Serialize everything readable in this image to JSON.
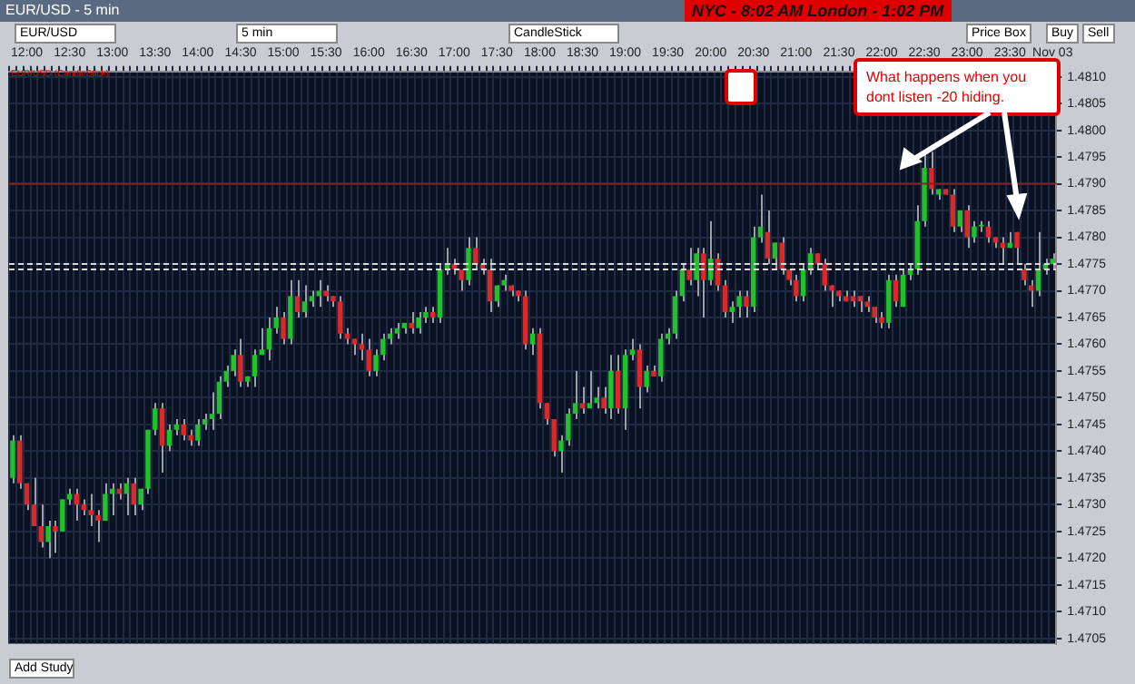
{
  "chart_data": {
    "type": "candlestick",
    "title": "EUR/USD - 5 min",
    "subtitle": "NYC - 8:02 AM   London - 1:02 PM",
    "annotations": [
      "What happens when you dont listen -20 hiding.",
      "EUR/USD",
      "5 min",
      "CandleStick",
      "Price Box",
      "Buy",
      "Sell",
      "EUR/USD (CandleStick)",
      "Add Study"
    ],
    "categories": [
      null,
      null,
      "12:00",
      null,
      null,
      null,
      null,
      null,
      "12:30",
      null,
      null,
      null,
      null,
      null,
      "13:00",
      null,
      null,
      null,
      null,
      null,
      "13:30",
      null,
      null,
      null,
      null,
      null,
      "14:00",
      null,
      null,
      null,
      null,
      null,
      "14:30",
      null,
      null,
      null,
      null,
      null,
      "15:00",
      null,
      null,
      null,
      null,
      null,
      "15:30",
      null,
      null,
      null,
      null,
      null,
      "16:00",
      null,
      null,
      null,
      null,
      null,
      "16:30",
      null,
      null,
      null,
      null,
      null,
      "17:00",
      null,
      null,
      null,
      null,
      null,
      "17:30",
      null,
      null,
      null,
      null,
      null,
      "18:00",
      null,
      null,
      null,
      null,
      null,
      "18:30",
      null,
      null,
      null,
      null,
      null,
      "19:00",
      null,
      null,
      null,
      null,
      null,
      "19:30",
      null,
      null,
      null,
      null,
      null,
      "20:00",
      null,
      null,
      null,
      null,
      null,
      "20:30",
      null,
      null,
      null,
      null,
      null,
      "21:00",
      null,
      null,
      null,
      null,
      null,
      "21:30",
      null,
      null,
      null,
      null,
      null,
      "22:00",
      null,
      null,
      null,
      null,
      null,
      "22:30",
      null,
      null,
      null,
      null,
      null,
      "23:00",
      null,
      null,
      null,
      null,
      null,
      "23:30",
      null,
      null,
      null,
      null,
      null,
      "Nov 03"
    ],
    "ohlc": [
      [
        1.4735,
        1.4743,
        1.4734,
        1.4742
      ],
      [
        1.4742,
        1.4743,
        1.4733,
        1.4734
      ],
      [
        1.4734,
        1.4734,
        1.4729,
        1.473
      ],
      [
        1.473,
        1.4735,
        1.4726,
        1.4726
      ],
      [
        1.4726,
        1.473,
        1.4722,
        1.4723
      ],
      [
        1.4723,
        1.4727,
        1.472,
        1.4726
      ],
      [
        1.4726,
        1.4727,
        1.4721,
        1.4725
      ],
      [
        1.4725,
        1.4731,
        1.4725,
        1.4731
      ],
      [
        1.4731,
        1.4733,
        1.473,
        1.4732
      ],
      [
        1.4732,
        1.4733,
        1.4727,
        1.473
      ],
      [
        1.473,
        1.4731,
        1.4728,
        1.4729
      ],
      [
        1.4729,
        1.4732,
        1.4726,
        1.4728
      ],
      [
        1.4728,
        1.4729,
        1.4723,
        1.4727
      ],
      [
        1.4727,
        1.4734,
        1.4727,
        1.4732
      ],
      [
        1.4732,
        1.4734,
        1.4728,
        1.4733
      ],
      [
        1.4733,
        1.4734,
        1.4731,
        1.4732
      ],
      [
        1.4732,
        1.4735,
        1.4728,
        1.4734
      ],
      [
        1.4734,
        1.4735,
        1.4728,
        1.473
      ],
      [
        1.473,
        1.4733,
        1.4729,
        1.4733
      ],
      [
        1.4733,
        1.4744,
        1.4732,
        1.4744
      ],
      [
        1.4744,
        1.4749,
        1.4743,
        1.4748
      ],
      [
        1.4748,
        1.4749,
        1.4736,
        1.4741
      ],
      [
        1.4741,
        1.4745,
        1.474,
        1.4744
      ],
      [
        1.4744,
        1.4746,
        1.4743,
        1.4745
      ],
      [
        1.4745,
        1.4746,
        1.4742,
        1.4743
      ],
      [
        1.4743,
        1.4744,
        1.4741,
        1.4742
      ],
      [
        1.4742,
        1.4746,
        1.4741,
        1.4745
      ],
      [
        1.4745,
        1.4747,
        1.4744,
        1.4746
      ],
      [
        1.4746,
        1.4751,
        1.4744,
        1.4747
      ],
      [
        1.4747,
        1.4754,
        1.4746,
        1.4753
      ],
      [
        1.4753,
        1.4756,
        1.4752,
        1.4755
      ],
      [
        1.4755,
        1.4759,
        1.4754,
        1.4758
      ],
      [
        1.4758,
        1.4761,
        1.4752,
        1.4753
      ],
      [
        1.4753,
        1.4754,
        1.4752,
        1.4754
      ],
      [
        1.4754,
        1.4759,
        1.4752,
        1.4758
      ],
      [
        1.4758,
        1.4763,
        1.4758,
        1.4759
      ],
      [
        1.4759,
        1.4765,
        1.4757,
        1.4763
      ],
      [
        1.4763,
        1.4767,
        1.4762,
        1.4765
      ],
      [
        1.4765,
        1.4766,
        1.476,
        1.4761
      ],
      [
        1.4761,
        1.4772,
        1.476,
        1.4769
      ],
      [
        1.4769,
        1.4772,
        1.4765,
        1.4766
      ],
      [
        1.4766,
        1.4771,
        1.4765,
        1.4768
      ],
      [
        1.4768,
        1.477,
        1.4767,
        1.4769
      ],
      [
        1.4769,
        1.4772,
        1.4767,
        1.477
      ],
      [
        1.477,
        1.4771,
        1.4768,
        1.4769
      ],
      [
        1.4769,
        1.4769,
        1.4767,
        1.4768
      ],
      [
        1.4768,
        1.4769,
        1.4761,
        1.4762
      ],
      [
        1.4762,
        1.4763,
        1.476,
        1.4761
      ],
      [
        1.4761,
        1.4761,
        1.4758,
        1.476
      ],
      [
        1.476,
        1.4762,
        1.4757,
        1.4759
      ],
      [
        1.4759,
        1.4761,
        1.4754,
        1.4755
      ],
      [
        1.4755,
        1.4759,
        1.4754,
        1.4758
      ],
      [
        1.4758,
        1.4762,
        1.4757,
        1.4761
      ],
      [
        1.4761,
        1.4763,
        1.476,
        1.4762
      ],
      [
        1.4762,
        1.4764,
        1.4761,
        1.4763
      ],
      [
        1.4763,
        1.4764,
        1.4762,
        1.4764
      ],
      [
        1.4764,
        1.4766,
        1.4762,
        1.4763
      ],
      [
        1.4763,
        1.4766,
        1.4762,
        1.4765
      ],
      [
        1.4765,
        1.4767,
        1.4764,
        1.4766
      ],
      [
        1.4766,
        1.4767,
        1.4764,
        1.4765
      ],
      [
        1.4765,
        1.4775,
        1.4764,
        1.4774
      ],
      [
        1.4774,
        1.4778,
        1.4773,
        1.4775
      ],
      [
        1.4775,
        1.4776,
        1.4773,
        1.4774
      ],
      [
        1.4774,
        1.4774,
        1.477,
        1.4772
      ],
      [
        1.4772,
        1.478,
        1.4771,
        1.4778
      ],
      [
        1.4778,
        1.478,
        1.4774,
        1.4775
      ],
      [
        1.4775,
        1.4776,
        1.4773,
        1.4774
      ],
      [
        1.4774,
        1.4776,
        1.4766,
        1.4768
      ],
      [
        1.4768,
        1.4771,
        1.4767,
        1.4771
      ],
      [
        1.4771,
        1.4773,
        1.477,
        1.4772
      ],
      [
        1.4771,
        1.4771,
        1.4769,
        1.477
      ],
      [
        1.477,
        1.477,
        1.4768,
        1.4769
      ],
      [
        1.4769,
        1.477,
        1.4759,
        1.476
      ],
      [
        1.476,
        1.4763,
        1.4758,
        1.4762
      ],
      [
        1.4762,
        1.4763,
        1.4748,
        1.4749
      ],
      [
        1.4749,
        1.4749,
        1.4745,
        1.4746
      ],
      [
        1.4746,
        1.4746,
        1.4739,
        1.474
      ],
      [
        1.474,
        1.4743,
        1.4736,
        1.4742
      ],
      [
        1.4742,
        1.4748,
        1.4741,
        1.4747
      ],
      [
        1.4747,
        1.4755,
        1.4746,
        1.4749
      ],
      [
        1.4749,
        1.4752,
        1.4747,
        1.4748
      ],
      [
        1.4748,
        1.4755,
        1.4748,
        1.4749
      ],
      [
        1.4749,
        1.4752,
        1.4748,
        1.475
      ],
      [
        1.475,
        1.4752,
        1.4747,
        1.4748
      ],
      [
        1.4748,
        1.4758,
        1.4746,
        1.4755
      ],
      [
        1.4755,
        1.4758,
        1.4747,
        1.4748
      ],
      [
        1.4748,
        1.4759,
        1.4744,
        1.4758
      ],
      [
        1.4758,
        1.4761,
        1.4757,
        1.4759
      ],
      [
        1.4759,
        1.476,
        1.4748,
        1.4752
      ],
      [
        1.4752,
        1.4756,
        1.4751,
        1.4755
      ],
      [
        1.4755,
        1.4756,
        1.4754,
        1.4754
      ],
      [
        1.4754,
        1.4762,
        1.4753,
        1.4761
      ],
      [
        1.4761,
        1.4763,
        1.476,
        1.4762
      ],
      [
        1.4762,
        1.477,
        1.4761,
        1.4769
      ],
      [
        1.4769,
        1.4775,
        1.4768,
        1.4774
      ],
      [
        1.4774,
        1.4778,
        1.4771,
        1.4772
      ],
      [
        1.4772,
        1.4778,
        1.4769,
        1.4777
      ],
      [
        1.4777,
        1.4778,
        1.4765,
        1.4772
      ],
      [
        1.4772,
        1.4783,
        1.4771,
        1.4776
      ],
      [
        1.4776,
        1.4777,
        1.477,
        1.4771
      ],
      [
        1.4771,
        1.4772,
        1.4765,
        1.4766
      ],
      [
        1.4766,
        1.4768,
        1.4764,
        1.4767
      ],
      [
        1.4767,
        1.477,
        1.4765,
        1.4769
      ],
      [
        1.4769,
        1.477,
        1.4765,
        1.4767
      ],
      [
        1.4767,
        1.4782,
        1.4766,
        1.478
      ],
      [
        1.478,
        1.4788,
        1.4779,
        1.4782
      ],
      [
        1.4781,
        1.4785,
        1.4775,
        1.4776
      ],
      [
        1.4776,
        1.4779,
        1.4774,
        1.4779
      ],
      [
        1.4779,
        1.478,
        1.4773,
        1.4774
      ],
      [
        1.4774,
        1.4774,
        1.4771,
        1.4772
      ],
      [
        1.4772,
        1.4773,
        1.4768,
        1.4769
      ],
      [
        1.4769,
        1.4775,
        1.4768,
        1.4774
      ],
      [
        1.4774,
        1.4778,
        1.4773,
        1.4777
      ],
      [
        1.4777,
        1.4777,
        1.4774,
        1.4775
      ],
      [
        1.4775,
        1.4776,
        1.477,
        1.4771
      ],
      [
        1.4771,
        1.4771,
        1.4767,
        1.477
      ],
      [
        1.477,
        1.477,
        1.4768,
        1.4769
      ],
      [
        1.4769,
        1.477,
        1.4768,
        1.4768
      ],
      [
        1.4769,
        1.477,
        1.4767,
        1.4768
      ],
      [
        1.4769,
        1.4769,
        1.4766,
        1.4768
      ],
      [
        1.4768,
        1.4769,
        1.4766,
        1.4767
      ],
      [
        1.4767,
        1.4767,
        1.4764,
        1.4765
      ],
      [
        1.4765,
        1.4766,
        1.4763,
        1.4764
      ],
      [
        1.4764,
        1.4773,
        1.4763,
        1.4772
      ],
      [
        1.4772,
        1.4773,
        1.4767,
        1.4768
      ],
      [
        1.4767,
        1.4774,
        1.4767,
        1.4773
      ],
      [
        1.4773,
        1.4775,
        1.4772,
        1.4774
      ],
      [
        1.4774,
        1.4786,
        1.4773,
        1.4783
      ],
      [
        1.4783,
        1.4796,
        1.4782,
        1.4793
      ],
      [
        1.4793,
        1.4796,
        1.4788,
        1.4789
      ],
      [
        1.4788,
        1.4789,
        1.4787,
        1.4789
      ],
      [
        1.4789,
        1.4789,
        1.4788,
        1.4788
      ],
      [
        1.4788,
        1.4789,
        1.4781,
        1.4782
      ],
      [
        1.4782,
        1.4785,
        1.4781,
        1.4785
      ],
      [
        1.4785,
        1.4786,
        1.4778,
        1.478
      ],
      [
        1.478,
        1.4783,
        1.4779,
        1.4782
      ],
      [
        1.4782,
        1.4783,
        1.4781,
        1.4782
      ],
      [
        1.4782,
        1.4783,
        1.4779,
        1.478
      ],
      [
        1.478,
        1.478,
        1.4778,
        1.4779
      ],
      [
        1.4779,
        1.478,
        1.4775,
        1.4778
      ],
      [
        1.4778,
        1.4781,
        1.4778,
        1.4779
      ],
      [
        1.4781,
        1.4781,
        1.4775,
        1.4778
      ],
      [
        1.4774,
        1.4775,
        1.4771,
        1.4772
      ],
      [
        1.4771,
        1.4772,
        1.4767,
        1.477
      ],
      [
        1.477,
        1.4781,
        1.4769,
        1.4774
      ],
      [
        1.4774,
        1.4776,
        1.4773,
        1.4775
      ],
      [
        1.4775,
        1.4777,
        1.4774,
        1.4776
      ]
    ],
    "ylim": [
      1.4704,
      1.4811
    ],
    "yticks": [
      1.4705,
      {
        "value": 1.471,
        "label": "1.4710"
      },
      1.4715,
      {
        "value": 1.472,
        "label": "1.4720"
      },
      1.4725,
      {
        "value": 1.473,
        "label": "1.4730"
      },
      1.4735,
      {
        "value": 1.474,
        "label": "1.4740"
      },
      1.4745,
      {
        "value": 1.475,
        "label": "1.4750"
      },
      1.4755,
      {
        "value": 1.476,
        "label": "1.4760"
      },
      1.4765,
      {
        "value": 1.477,
        "label": "1.4770"
      },
      1.4775,
      {
        "value": 1.478,
        "label": "1.4780"
      },
      1.4785,
      {
        "value": 1.479,
        "label": "1.4790"
      },
      1.4795,
      {
        "value": 1.48,
        "label": "1.4800"
      },
      1.4805,
      {
        "value": 1.481,
        "label": "1.4810"
      }
    ],
    "ref_lines": [
      {
        "axis": "y",
        "value": 1.479,
        "color": "#8b2020",
        "line_style": "solid"
      },
      {
        "axis": "y",
        "value": 1.4775,
        "color": "#d8d8d8",
        "line_style": "dashed"
      },
      {
        "axis": "y",
        "value": 1.4774,
        "color": "#d8d8d8",
        "line_style": "dashed"
      }
    ],
    "grid": true,
    "legend": false
  }
}
